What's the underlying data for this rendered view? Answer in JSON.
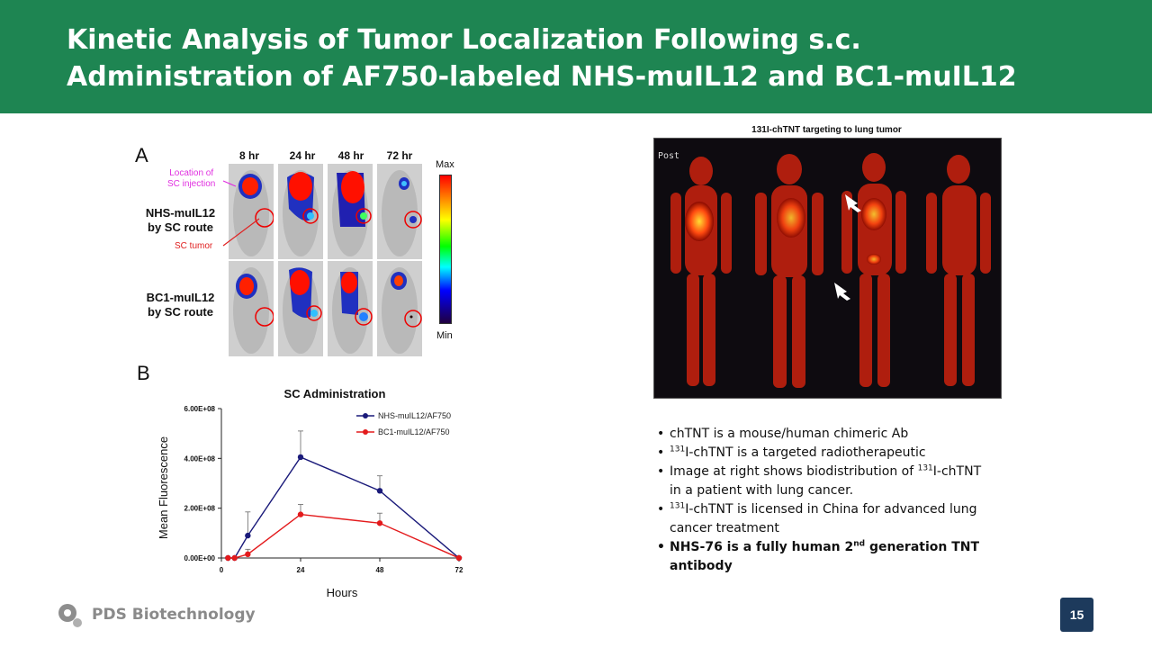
{
  "header": {
    "title_line1": "Kinetic Analysis of Tumor Localization Following s.c.",
    "title_line2": "Administration of AF750-labeled NHS-muIL12 and BC1-muIL12"
  },
  "panel_a": {
    "letter": "A",
    "time_labels": [
      "8 hr",
      "24 hr",
      "48 hr",
      "72 hr"
    ],
    "row1_label_line1": "NHS-muIL12",
    "row1_label_line2": "by SC route",
    "row2_label_line1": "BC1-muIL12",
    "row2_label_line2": "by SC route",
    "annot_injection_line1": "Location of",
    "annot_injection_line2": "SC injection",
    "annot_tumor": "SC tumor",
    "scale_max": "Max",
    "scale_min": "Min"
  },
  "panel_b": {
    "letter": "B"
  },
  "chart_data": {
    "type": "line",
    "title": "SC Administration",
    "xlabel": "Hours",
    "ylabel": "Mean Fluorescence",
    "x_ticks": [
      "0",
      "24",
      "48",
      "72"
    ],
    "y_ticks": [
      "0.00E+00",
      "2.00E+08",
      "4.00E+08",
      "6.00E+08"
    ],
    "xlim": [
      0,
      72
    ],
    "ylim": [
      0,
      600000000
    ],
    "legend_position": "top-right",
    "series": [
      {
        "name": "NHS-muIL12/AF750",
        "color": "#1a1a7a",
        "x": [
          2,
          4,
          8,
          24,
          48,
          72
        ],
        "y": [
          0,
          0,
          90000000,
          405000000,
          270000000,
          0
        ],
        "err": [
          0,
          0,
          95000000,
          105000000,
          60000000,
          0
        ]
      },
      {
        "name": "BC1-muIL12/AF750",
        "color": "#e31a1c",
        "x": [
          2,
          4,
          8,
          24,
          48,
          72
        ],
        "y": [
          0,
          0,
          15000000,
          175000000,
          140000000,
          0
        ],
        "err": [
          0,
          0,
          20000000,
          40000000,
          40000000,
          0
        ]
      }
    ]
  },
  "scan": {
    "title": "131I-chTNT  targeting to lung tumor",
    "post_label": "Post"
  },
  "bullets": {
    "b1": "chTNT is a mouse/human chimeric Ab",
    "b2_sup": "131",
    "b2_text": "I-chTNT is a targeted radiotherapeutic",
    "b3_pre": "Image at right shows biodistribution of ",
    "b3_sup": "131",
    "b3_post": "I-chTNT in a patient with lung cancer.",
    "b4_sup": "131",
    "b4_text": "I-chTNT is licensed in China for advanced lung cancer treatment",
    "b5_pre": "NHS-76 is a fully human 2",
    "b5_sup": "nd",
    "b5_post": " generation TNT antibody"
  },
  "footer": {
    "logo_text": "PDS Biotechnology",
    "page_number": "15"
  }
}
